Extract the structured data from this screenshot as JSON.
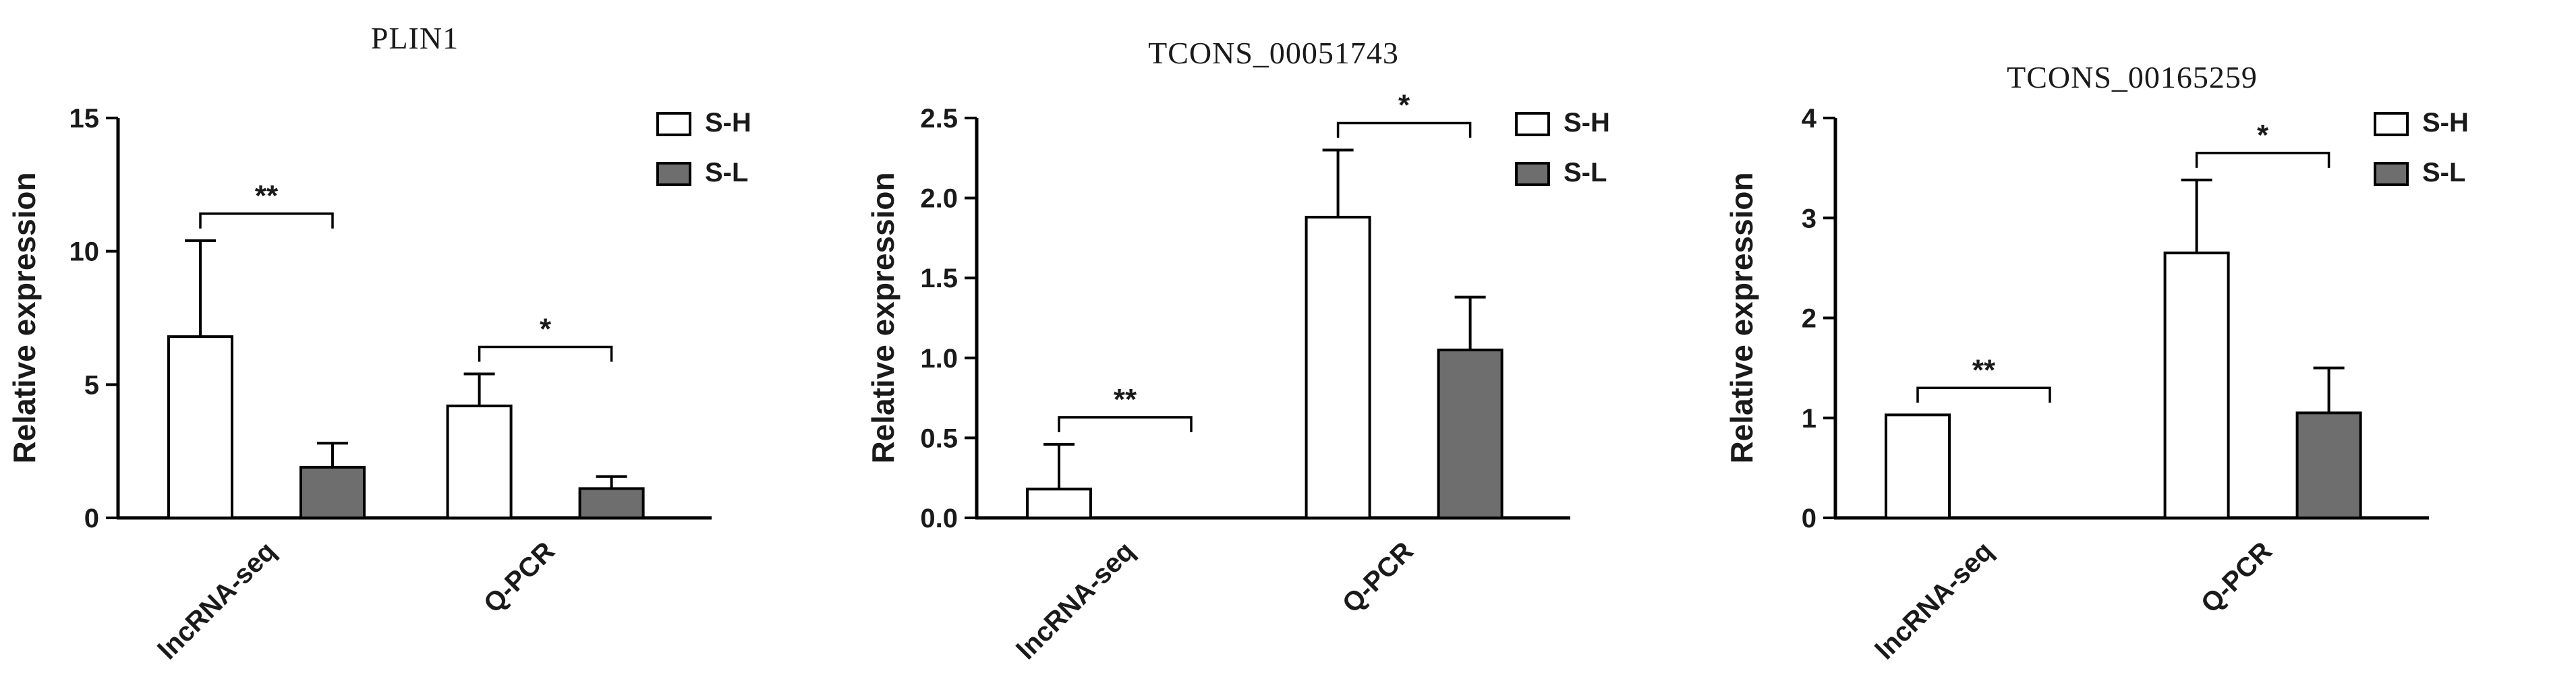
{
  "colors": {
    "background": "#ffffff",
    "axis": "#000000",
    "text": "#1a1a1a",
    "bar_outline": "#000000",
    "sh_fill": "#ffffff",
    "sl_fill": "#6e6e6e"
  },
  "legend": {
    "items": [
      "S-H",
      "S-L"
    ]
  },
  "chart_data": [
    {
      "type": "bar",
      "title": "PLIN1",
      "xlabel": "",
      "ylabel": "Relative expression",
      "categories": [
        "lncRNA-seq",
        "Q-PCR"
      ],
      "series": [
        {
          "name": "S-H",
          "fill": "#ffffff",
          "values": [
            6.8,
            4.2
          ],
          "errors": [
            3.6,
            1.2
          ]
        },
        {
          "name": "S-L",
          "fill": "#6e6e6e",
          "values": [
            1.9,
            1.1
          ],
          "errors": [
            0.9,
            0.45
          ]
        }
      ],
      "ylim": [
        0,
        15
      ],
      "yticks": [
        0,
        5,
        10,
        15
      ],
      "ytick_labels": [
        "0",
        "5",
        "10",
        "15"
      ],
      "significance": [
        "**",
        "*"
      ],
      "legend": [
        "S-H",
        "S-L"
      ],
      "legend_position": "top-right",
      "grid": false
    },
    {
      "type": "bar",
      "title": "TCONS_00051743",
      "xlabel": "",
      "ylabel": "Relative expression",
      "categories": [
        "lncRNA-seq",
        "Q-PCR"
      ],
      "series": [
        {
          "name": "S-H",
          "fill": "#ffffff",
          "values": [
            0.18,
            1.88
          ],
          "errors": [
            0.28,
            0.42
          ]
        },
        {
          "name": "S-L",
          "fill": "#6e6e6e",
          "values": [
            0,
            1.05
          ],
          "errors": [
            0,
            0.33
          ]
        }
      ],
      "ylim": [
        0,
        2.5
      ],
      "yticks": [
        0,
        0.5,
        1,
        1.5,
        2,
        2.5
      ],
      "ytick_labels": [
        "0.0",
        "0.5",
        "1.0",
        "1.5",
        "2.0",
        "2.5"
      ],
      "significance": [
        "**",
        "*"
      ],
      "legend": [
        "S-H",
        "S-L"
      ],
      "legend_position": "top-right",
      "grid": false
    },
    {
      "type": "bar",
      "title": "TCONS_00165259",
      "xlabel": "",
      "ylabel": "Relative expression",
      "categories": [
        "lncRNA-seq",
        "Q-PCR"
      ],
      "series": [
        {
          "name": "S-H",
          "fill": "#ffffff",
          "values": [
            1.03,
            2.65
          ],
          "errors": [
            0,
            0.73
          ]
        },
        {
          "name": "S-L",
          "fill": "#6e6e6e",
          "values": [
            0,
            1.05
          ],
          "errors": [
            0,
            0.45
          ]
        }
      ],
      "ylim": [
        0,
        4
      ],
      "yticks": [
        0,
        1,
        2,
        3,
        4
      ],
      "ytick_labels": [
        "0",
        "1",
        "2",
        "3",
        "4"
      ],
      "significance": [
        "**",
        "*"
      ],
      "legend": [
        "S-H",
        "S-L"
      ],
      "legend_position": "top-right",
      "grid": false
    }
  ]
}
